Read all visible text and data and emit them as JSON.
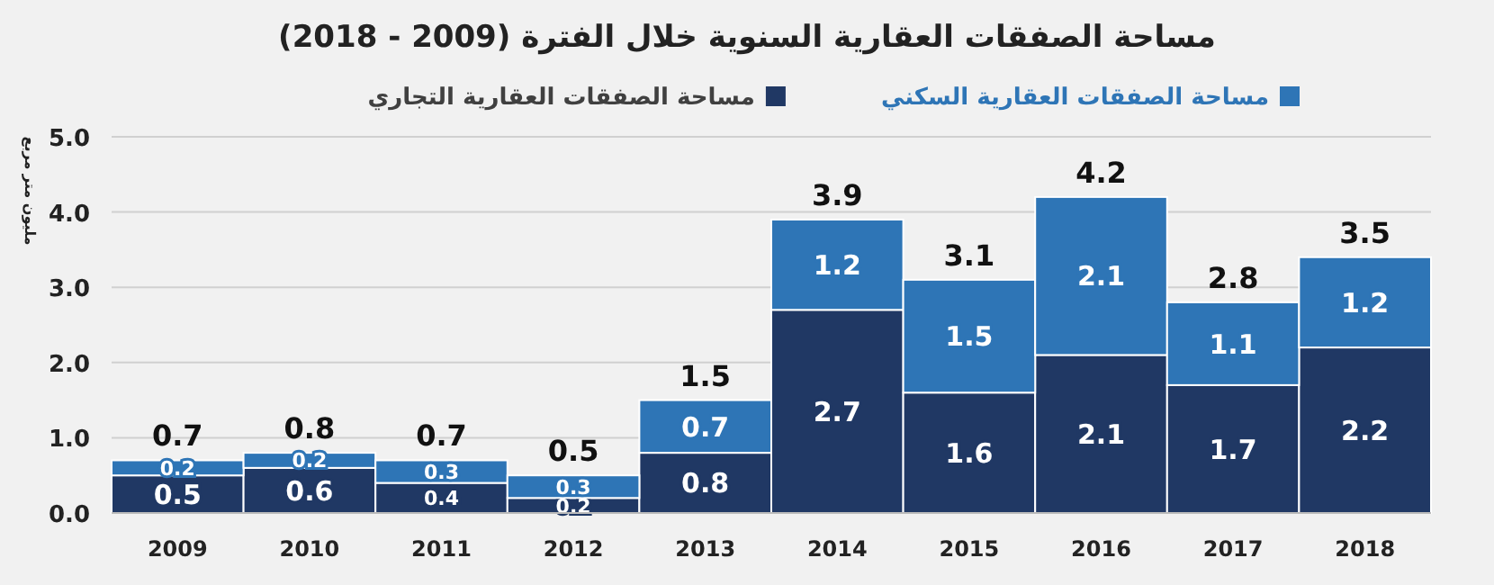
{
  "chart_data": {
    "type": "bar",
    "stacked": true,
    "title": "مساحة الصفقات العقارية السنوية خلال الفترة (2009 - 2018)",
    "ylabel": "مليون متر مربع",
    "categories": [
      "2009",
      "2010",
      "2011",
      "2012",
      "2013",
      "2014",
      "2015",
      "2016",
      "2017",
      "2018"
    ],
    "series": [
      {
        "name": "مساحة الصفقات العقارية التجاري",
        "color": "#203864",
        "values": [
          0.5,
          0.6,
          0.4,
          0.2,
          0.8,
          2.7,
          1.6,
          2.1,
          1.7,
          2.2
        ]
      },
      {
        "name": "مساحة الصفقات العقارية السكني",
        "color": "#2e75b6",
        "values": [
          0.2,
          0.2,
          0.3,
          0.3,
          0.7,
          1.2,
          1.5,
          2.1,
          1.1,
          1.2
        ]
      }
    ],
    "totals": [
      "0.7",
      "0.8",
      "0.7",
      "0.5",
      "1.5",
      "3.9",
      "3.1",
      "4.2",
      "2.8",
      "3.5"
    ],
    "data_labels": true,
    "ylim": [
      0,
      5
    ],
    "yticks": [
      {
        "value": 0,
        "label": "0.0"
      },
      {
        "value": 1,
        "label": "1.0"
      },
      {
        "value": 2,
        "label": "2.0"
      },
      {
        "value": 3,
        "label": "3.0"
      },
      {
        "value": 4,
        "label": "4.0"
      },
      {
        "value": 5,
        "label": "5.0"
      }
    ],
    "grid": "y",
    "legend": "top"
  }
}
